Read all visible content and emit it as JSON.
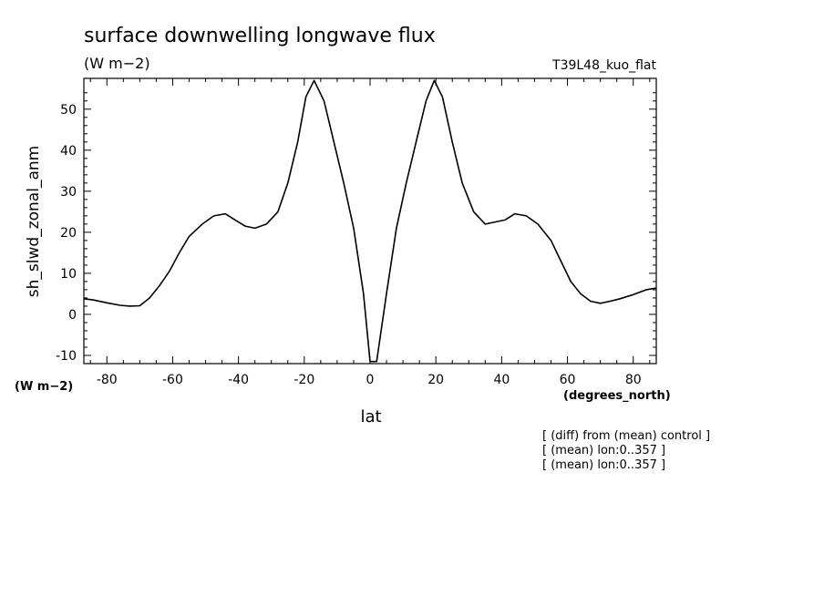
{
  "chart_data": {
    "type": "line",
    "title": "surface downwelling longwave flux",
    "subtitle": "(W m−2)",
    "run_label": "T39L48_kuo_flat",
    "xlabel": "lat",
    "x_units": "(degrees_north)",
    "ylabel": "sh_slwd_zonal_anm",
    "y_units": "(W m−2)",
    "xlim": [
      -87,
      87
    ],
    "ylim": [
      -12,
      57.5
    ],
    "x_ticks": [
      -80,
      -60,
      -40,
      -20,
      0,
      20,
      40,
      60,
      80
    ],
    "y_ticks": [
      -10,
      0,
      10,
      20,
      30,
      40,
      50
    ],
    "grid": false,
    "notes": [
      "[ (diff) from (mean) control ]",
      "[ (mean) lon:0..357 ]",
      "[ (mean) lon:0..357 ]"
    ],
    "series": [
      {
        "x": [
          -87,
          -84,
          -80,
          -76,
          -73,
          -70,
          -67,
          -64,
          -61,
          -58,
          -55,
          -51,
          -47.5,
          -44,
          -41,
          -38,
          -35,
          -31.5,
          -28,
          -25,
          -22,
          -19.5,
          -17,
          -14,
          -11,
          -8,
          -5,
          -2,
          0,
          2,
          5,
          8,
          11,
          14,
          17,
          19.5,
          22,
          25,
          28,
          31.5,
          35,
          38,
          41,
          44,
          47.5,
          51,
          55,
          58,
          61,
          64,
          67,
          70,
          73,
          76,
          80,
          84,
          87
        ],
        "y": [
          3.8,
          3.5,
          2.8,
          2.2,
          2.0,
          2.1,
          4.0,
          7.0,
          10.5,
          15.0,
          19.0,
          22.0,
          24.0,
          24.5,
          23.0,
          21.5,
          21.0,
          22.0,
          25.0,
          32.0,
          42.0,
          53.0,
          57.0,
          52.0,
          42.0,
          32.0,
          21.0,
          5.0,
          -11.5,
          -11.5,
          5.0,
          21.0,
          32.0,
          42.0,
          52.0,
          57.0,
          53.0,
          42.0,
          32.0,
          25.0,
          22.0,
          22.5,
          23.0,
          24.5,
          24.0,
          22.0,
          18.0,
          13.0,
          8.0,
          5.0,
          3.2,
          2.7,
          3.2,
          3.8,
          4.8,
          6.0,
          6.4
        ]
      }
    ]
  }
}
